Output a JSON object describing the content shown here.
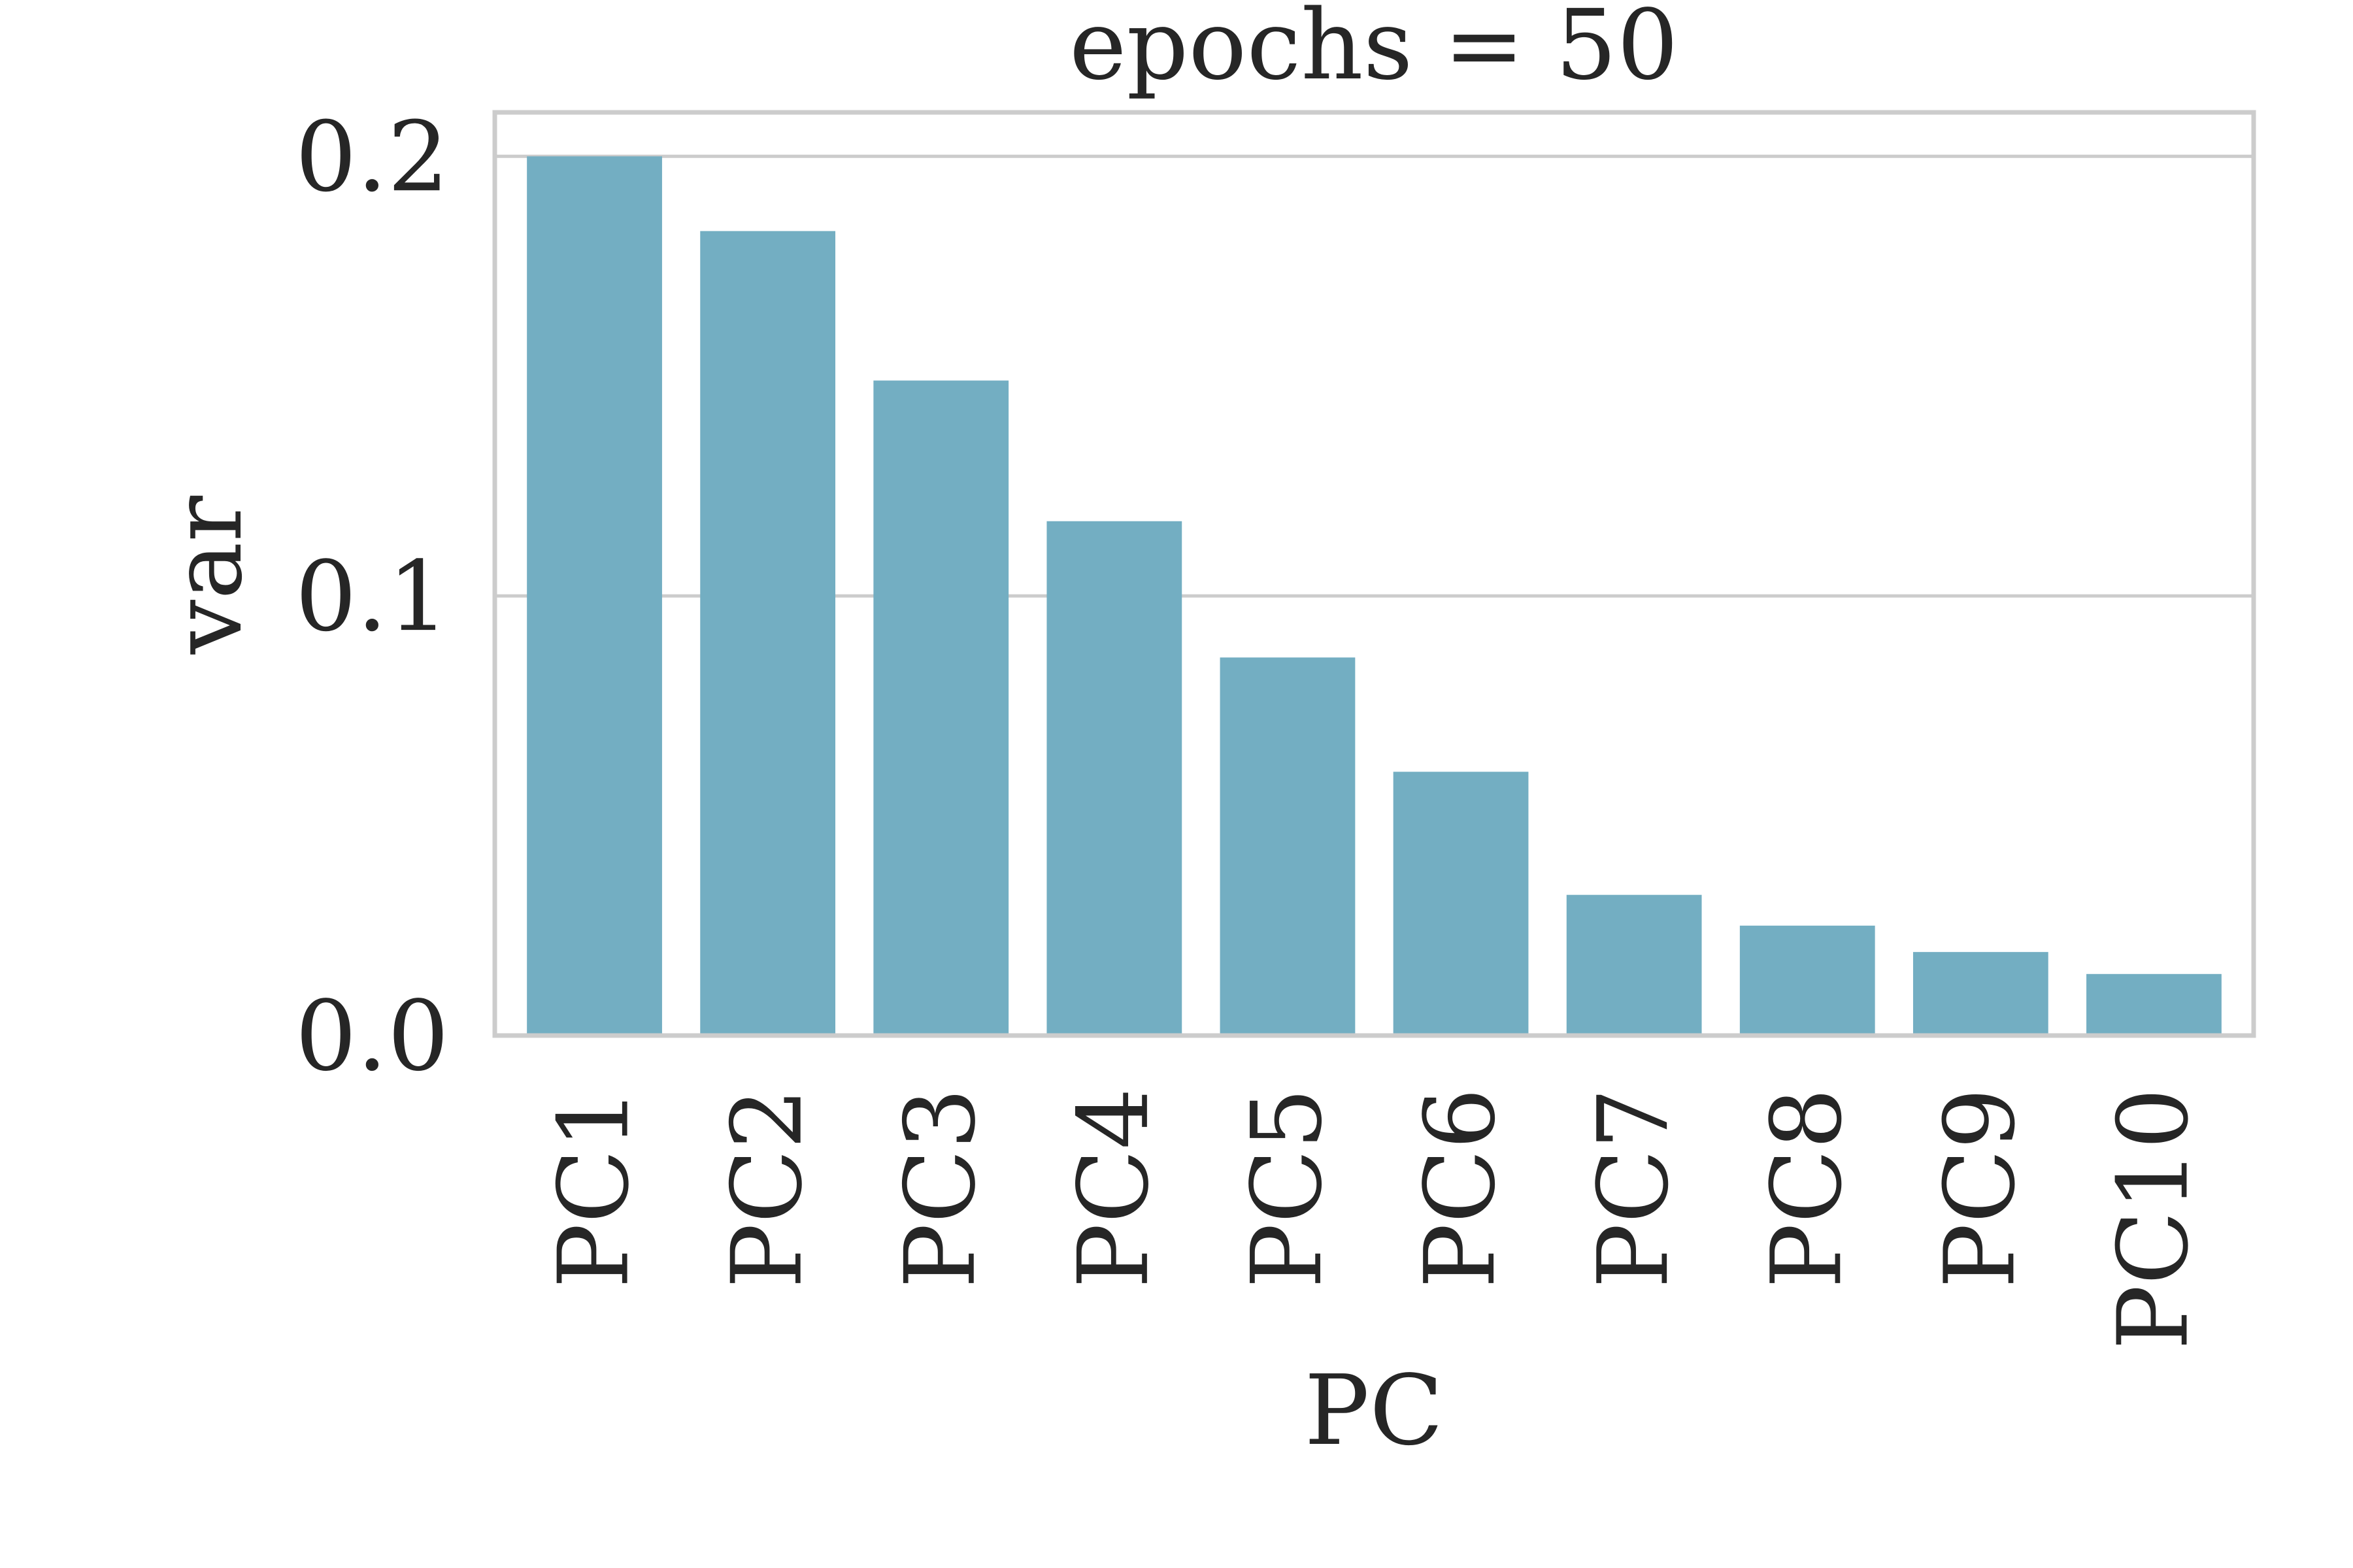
{
  "chart_data": {
    "type": "bar",
    "title": "epochs = 50",
    "xlabel": "PC",
    "ylabel": "var",
    "categories": [
      "PC1",
      "PC2",
      "PC3",
      "PC4",
      "PC5",
      "PC6",
      "PC7",
      "PC8",
      "PC9",
      "PC10"
    ],
    "values": [
      0.2,
      0.183,
      0.149,
      0.117,
      0.086,
      0.06,
      0.032,
      0.025,
      0.019,
      0.014
    ],
    "ylim": [
      0,
      0.21
    ],
    "yticks": [
      {
        "value": 0.0,
        "label": "0.0"
      },
      {
        "value": 0.1,
        "label": "0.1"
      },
      {
        "value": 0.2,
        "label": "0.2"
      }
    ],
    "grid": true,
    "legend": "none",
    "bar_color": "#73aec2"
  }
}
